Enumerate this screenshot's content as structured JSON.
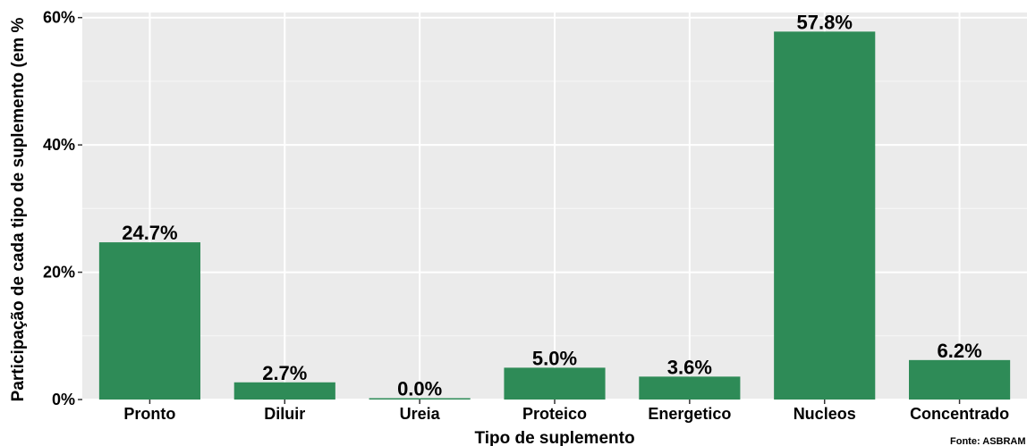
{
  "chart_data": {
    "type": "bar",
    "xlabel": "Tipo de suplemento",
    "ylabel": "Participação de cada tipo de suplemento (em %",
    "categories": [
      "Pronto",
      "Diluir",
      "Ureia",
      "Proteico",
      "Energetico",
      "Nucleos",
      "Concentrado"
    ],
    "values": [
      24.7,
      2.7,
      0.0,
      5.0,
      3.6,
      57.8,
      6.2
    ],
    "data_labels": [
      "24.7%",
      "2.7%",
      "0.0%",
      "5.0%",
      "3.6%",
      "57.8%",
      "6.2%"
    ],
    "yticks": [
      0,
      20,
      40,
      60
    ],
    "ytick_labels": [
      "0%",
      "20%",
      "40%",
      "60%"
    ],
    "ylim": [
      0,
      60.8
    ],
    "grid": true,
    "caption": "Fonte: ASBRAM",
    "colors": {
      "bar": "#2e8b57",
      "panel": "#ebebeb",
      "grid_major": "#ffffff",
      "grid_minor": "#f5f5f5"
    }
  }
}
